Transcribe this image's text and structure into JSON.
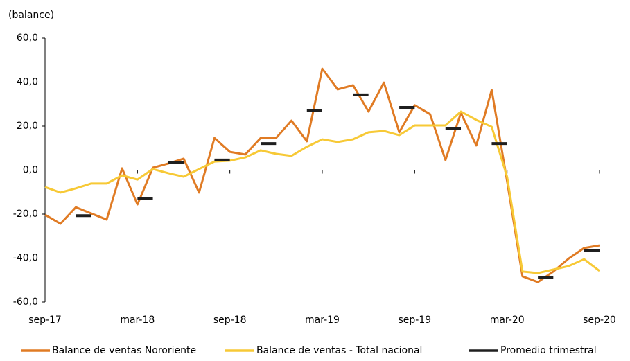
{
  "chart_data": {
    "type": "line",
    "y_label": "(balance)",
    "categories": [
      "sep-17",
      null,
      null,
      null,
      null,
      null,
      "mar-18",
      null,
      null,
      null,
      null,
      null,
      "sep-18",
      null,
      null,
      null,
      null,
      null,
      "mar-19",
      null,
      null,
      null,
      null,
      null,
      "sep-19",
      null,
      null,
      null,
      null,
      null,
      "mar-20",
      null,
      null,
      null,
      null,
      null,
      "sep-20"
    ],
    "series": [
      {
        "name": "Balance de ventas Nororiente",
        "color": "#e07b24",
        "style": "line",
        "values": [
          -20.3,
          -24.4,
          -16.9,
          -19.7,
          -22.5,
          0.8,
          -15.6,
          1.1,
          3.0,
          5.2,
          -10.2,
          14.6,
          8.3,
          7.1,
          14.6,
          14.6,
          22.5,
          13.1,
          46.1,
          36.7,
          38.6,
          26.6,
          39.8,
          17.2,
          29.5,
          25.4,
          4.6,
          26.0,
          11.2,
          36.4,
          -5.0,
          -48.3,
          -50.9,
          -46.1,
          -40.2,
          -35.4,
          -34.2
        ]
      },
      {
        "name": "Balance de ventas - Total nacional",
        "color": "#f7c936",
        "style": "line",
        "values": [
          -7.7,
          -10.2,
          -8.3,
          -6.1,
          -6.1,
          -2.4,
          -4.3,
          0.5,
          -1.4,
          -3.0,
          0.5,
          3.9,
          4.3,
          5.8,
          9.0,
          7.4,
          6.5,
          10.6,
          14.0,
          12.8,
          14.0,
          17.2,
          17.8,
          15.9,
          20.3,
          20.3,
          20.3,
          26.6,
          22.8,
          19.7,
          -3.0,
          -46.1,
          -46.8,
          -45.2,
          -43.6,
          -40.5,
          -45.8
        ]
      },
      {
        "name": "Promedio trimestral",
        "color": "#1f1f1f",
        "style": "dash",
        "values": [
          null,
          null,
          -20.7,
          null,
          null,
          null,
          -12.8,
          null,
          3.3,
          null,
          null,
          4.6,
          null,
          null,
          12.1,
          null,
          null,
          27.2,
          null,
          null,
          34.2,
          null,
          null,
          28.5,
          null,
          null,
          19.0,
          null,
          null,
          12.1,
          null,
          null,
          -48.7,
          null,
          null,
          -36.7,
          null
        ]
      }
    ],
    "ylim": [
      -60,
      60
    ],
    "yticks": [
      {
        "value": -60,
        "label": "-60,0"
      },
      {
        "value": -40,
        "label": "-40,0"
      },
      {
        "value": -20,
        "label": "-20,0"
      },
      {
        "value": 0,
        "label": "0,0"
      },
      {
        "value": 20,
        "label": "20,0"
      },
      {
        "value": 40,
        "label": "40,0"
      },
      {
        "value": 60,
        "label": "60,0"
      }
    ],
    "legend": "bottom"
  }
}
